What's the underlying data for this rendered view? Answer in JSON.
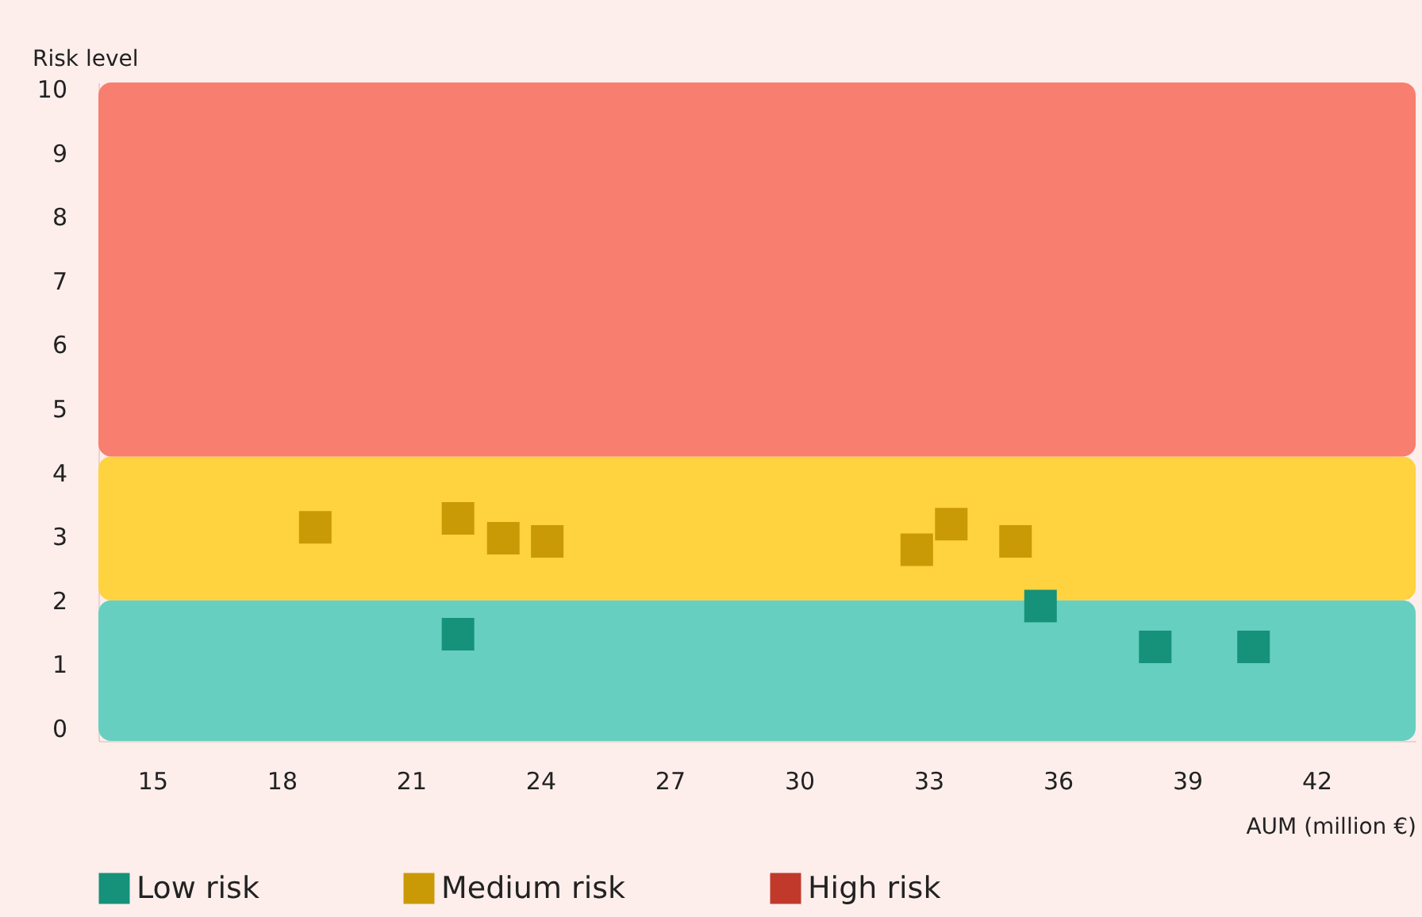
{
  "chart_data": {
    "type": "scatter",
    "xlabel": "AUM (million €)",
    "ylabel": "Risk level",
    "xlim": [
      13.75,
      44.3
    ],
    "ylim": [
      -0.2,
      10.1
    ],
    "xticks": [
      15,
      18,
      21,
      24,
      27,
      30,
      33,
      36,
      39,
      42
    ],
    "yticks": [
      0,
      1,
      2,
      3,
      4,
      5,
      6,
      7,
      8,
      9,
      10
    ],
    "bands": [
      {
        "axis": "y",
        "from": -0.2,
        "to": 2,
        "color": "#66cfc0"
      },
      {
        "axis": "y",
        "from": 2,
        "to": 4.25,
        "color": "#ffd23f"
      },
      {
        "axis": "y",
        "from": 4.25,
        "to": 10.1,
        "color": "#f87e70"
      }
    ],
    "series": [
      {
        "name": "Low risk",
        "color": "#16917a",
        "x": [
          22.09,
          35.6,
          38.26,
          40.54
        ],
        "values": [
          1.47,
          1.91,
          1.27,
          1.27
        ]
      },
      {
        "name": "Medium risk",
        "color": "#c99a06",
        "x": [
          18.78,
          22.09,
          23.14,
          24.16,
          32.73,
          33.53,
          35.02
        ],
        "values": [
          3.14,
          3.28,
          2.97,
          2.92,
          2.79,
          3.19,
          2.92
        ]
      },
      {
        "name": "High risk",
        "color": "#c0392b"
      }
    ],
    "marker": "square",
    "grid": false,
    "legend": "bottom"
  }
}
